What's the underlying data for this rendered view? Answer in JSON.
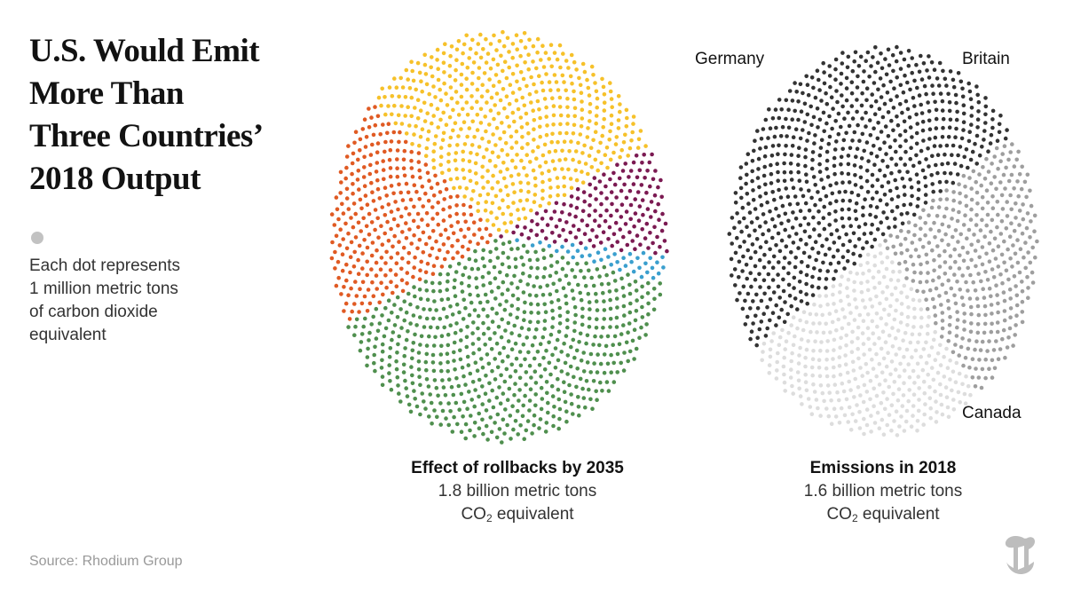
{
  "headline": [
    "U.S. Would Emit",
    "More Than",
    "Three Countries’",
    "2018 Output"
  ],
  "legend": {
    "lines": [
      "Each dot represents",
      "1 million metric tons",
      "of carbon dioxide",
      "equivalent"
    ]
  },
  "left_chart": {
    "title": "Effect of rollbacks by 2035",
    "amount": "1.8 billion metric tons",
    "co2_prefix": "CO",
    "co2_sub": "2",
    "co2_suffix": " equivalent"
  },
  "right_chart": {
    "title": "Emissions in 2018",
    "amount": "1.6 billion metric tons",
    "co2_prefix": "CO",
    "co2_sub": "2",
    "co2_suffix": " equivalent",
    "labels": {
      "germany": "Germany",
      "britain": "Britain",
      "canada": "Canada"
    }
  },
  "source": "Source: Rhodium Group",
  "colors": {
    "legend_dot": "#c2c2c2",
    "orange": "#e05a23",
    "yellow": "#f6c12a",
    "purple": "#7b1a52",
    "blue": "#3a9fce",
    "green": "#4f8f4e",
    "germany": "#333333",
    "britain": "#9e9e9e",
    "canada": "#dddddd"
  },
  "chart_data": [
    {
      "type": "dot-density",
      "title": "Effect of rollbacks by 2035",
      "unit": "million metric tons CO2 equivalent (1 dot each)",
      "total": 1800,
      "total_label": "1.8 billion metric tons",
      "series": [
        {
          "name": "Segment A (orange)",
          "value": 330,
          "color": "#e05a23"
        },
        {
          "name": "Segment B (yellow)",
          "value": 560,
          "color": "#f6c12a"
        },
        {
          "name": "Segment C (purple)",
          "value": 160,
          "color": "#7b1a52"
        },
        {
          "name": "Segment D (blue)",
          "value": 40,
          "color": "#3a9fce"
        },
        {
          "name": "Segment E (green)",
          "value": 710,
          "color": "#4f8f4e"
        }
      ]
    },
    {
      "type": "dot-density",
      "title": "Emissions in 2018",
      "unit": "million metric tons CO2 equivalent (1 dot each)",
      "total": 1600,
      "total_label": "1.6 billion metric tons",
      "series": [
        {
          "name": "Germany",
          "value": 800,
          "color": "#333333"
        },
        {
          "name": "Britain",
          "value": 380,
          "color": "#9e9e9e"
        },
        {
          "name": "Canada",
          "value": 420,
          "color": "#dddddd"
        }
      ]
    }
  ]
}
